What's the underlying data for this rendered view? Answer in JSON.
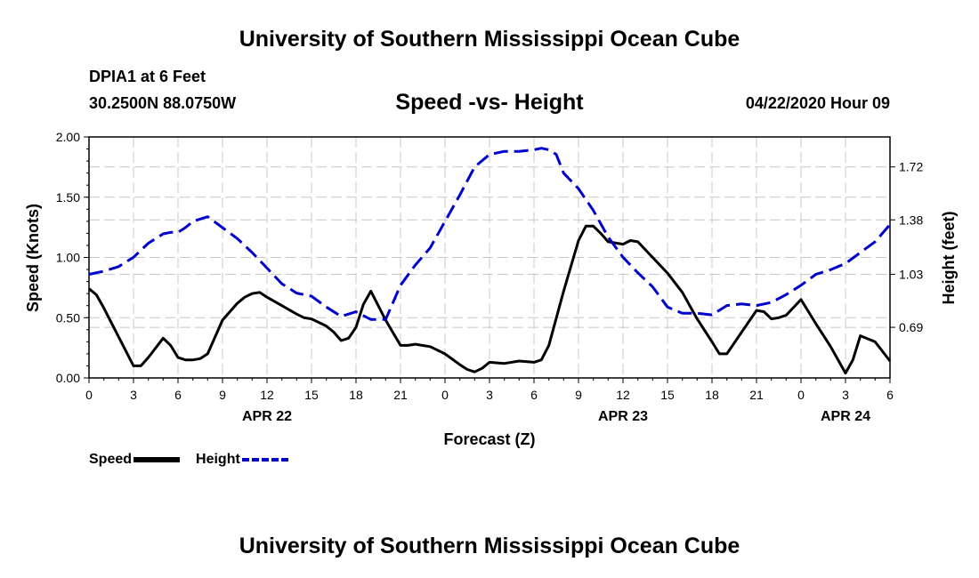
{
  "header": {
    "org_title": "University of Southern Mississippi Ocean Cube",
    "station_name": "DPIA1 at 6 Feet",
    "station_coords": "30.2500N 88.0750W",
    "chart_title": "Speed -vs- Height",
    "run_time": "04/22/2020 Hour 09"
  },
  "footer": {
    "org_title": "University of Southern Mississippi Ocean Cube"
  },
  "legend": {
    "speed_label": "Speed",
    "height_label": "Height"
  },
  "colors": {
    "speed": "#000000",
    "height": "#0000cc",
    "grid": "#c8c8c8"
  },
  "chart_data": {
    "type": "line",
    "title": "Speed -vs- Height",
    "xlabel": "Forecast (Z)",
    "ylabel": "Speed (Knots)",
    "y2label": "Height (feet)",
    "xlim": [
      0,
      54
    ],
    "ylim": [
      0,
      2.0
    ],
    "y2lim": [
      0.365,
      1.9125
    ],
    "x_ticks": [
      0,
      3,
      6,
      9,
      12,
      15,
      18,
      21,
      24,
      27,
      30,
      33,
      36,
      39,
      42,
      45,
      48,
      51,
      54
    ],
    "x_tick_labels": [
      "0",
      "3",
      "6",
      "9",
      "12",
      "15",
      "18",
      "21",
      "0",
      "3",
      "6",
      "9",
      "12",
      "15",
      "18",
      "21",
      "0",
      "3",
      "6"
    ],
    "y_ticks": [
      0,
      0.5,
      1.0,
      1.5,
      2.0
    ],
    "y_tick_labels": [
      "0.00",
      "0.50",
      "1.00",
      "1.50",
      "2.00"
    ],
    "y2_ticks": [
      0.69,
      1.03,
      1.38,
      1.72
    ],
    "y2_tick_labels": [
      "0.69",
      "1.03",
      "1.38",
      "1.72"
    ],
    "date_labels": [
      {
        "x": 12,
        "label": "APR 22"
      },
      {
        "x": 36,
        "label": "APR 23"
      },
      {
        "x": 51,
        "label": "APR 24"
      }
    ],
    "grid": true,
    "series": [
      {
        "name": "Speed",
        "axis": "left",
        "style": "solid",
        "x": [
          0,
          0.5,
          1,
          2,
          3,
          3.5,
          4,
          5,
          5.5,
          6,
          6.5,
          7,
          7.5,
          8,
          9,
          10,
          10.5,
          11,
          11.5,
          12,
          13,
          14,
          14.5,
          15,
          16,
          16.5,
          17,
          17.5,
          18,
          18.5,
          19,
          20,
          21,
          21.5,
          22,
          23,
          24,
          25,
          25.5,
          26,
          26.5,
          27,
          28,
          29,
          30,
          30.5,
          31,
          32,
          33,
          33.5,
          34,
          34.5,
          35,
          36,
          36.5,
          37,
          38,
          39,
          40,
          41,
          42,
          42.5,
          43,
          44,
          45,
          45.5,
          46,
          46.5,
          47,
          48,
          49,
          50,
          51,
          51.5,
          52,
          53,
          54
        ],
        "values": [
          0.74,
          0.69,
          0.58,
          0.34,
          0.1,
          0.1,
          0.17,
          0.33,
          0.27,
          0.17,
          0.15,
          0.15,
          0.16,
          0.2,
          0.48,
          0.62,
          0.67,
          0.7,
          0.71,
          0.67,
          0.6,
          0.53,
          0.5,
          0.49,
          0.43,
          0.38,
          0.31,
          0.33,
          0.42,
          0.61,
          0.72,
          0.48,
          0.27,
          0.27,
          0.28,
          0.26,
          0.2,
          0.11,
          0.07,
          0.05,
          0.08,
          0.13,
          0.12,
          0.14,
          0.13,
          0.15,
          0.27,
          0.72,
          1.14,
          1.26,
          1.26,
          1.2,
          1.13,
          1.11,
          1.14,
          1.13,
          1.0,
          0.87,
          0.71,
          0.49,
          0.3,
          0.2,
          0.2,
          0.38,
          0.56,
          0.55,
          0.49,
          0.5,
          0.52,
          0.65,
          0.45,
          0.26,
          0.04,
          0.15,
          0.35,
          0.3,
          0.14
        ]
      },
      {
        "name": "Height",
        "axis": "right",
        "style": "dashed",
        "x": [
          0,
          1,
          2,
          3,
          4,
          5,
          5.5,
          6,
          6.5,
          7,
          8,
          9,
          10,
          11,
          12,
          13,
          14,
          15,
          16,
          17,
          18,
          19,
          20,
          21,
          22,
          23,
          24,
          25,
          26,
          27,
          28,
          29,
          30,
          30.5,
          31,
          31.5,
          32,
          33,
          34,
          35,
          36,
          37,
          38,
          39,
          40,
          41,
          42,
          43,
          44,
          45,
          46,
          47,
          48,
          49,
          50,
          51,
          52,
          53,
          54
        ],
        "values": [
          1.03,
          1.05,
          1.08,
          1.14,
          1.23,
          1.29,
          1.3,
          1.3,
          1.33,
          1.37,
          1.4,
          1.33,
          1.26,
          1.17,
          1.07,
          0.97,
          0.91,
          0.89,
          0.82,
          0.76,
          0.79,
          0.74,
          0.74,
          0.96,
          1.09,
          1.2,
          1.37,
          1.54,
          1.72,
          1.8,
          1.82,
          1.82,
          1.83,
          1.84,
          1.83,
          1.8,
          1.68,
          1.58,
          1.44,
          1.27,
          1.14,
          1.04,
          0.95,
          0.82,
          0.78,
          0.78,
          0.77,
          0.83,
          0.84,
          0.83,
          0.85,
          0.9,
          0.96,
          1.03,
          1.06,
          1.1,
          1.17,
          1.24,
          1.35
        ]
      }
    ]
  }
}
